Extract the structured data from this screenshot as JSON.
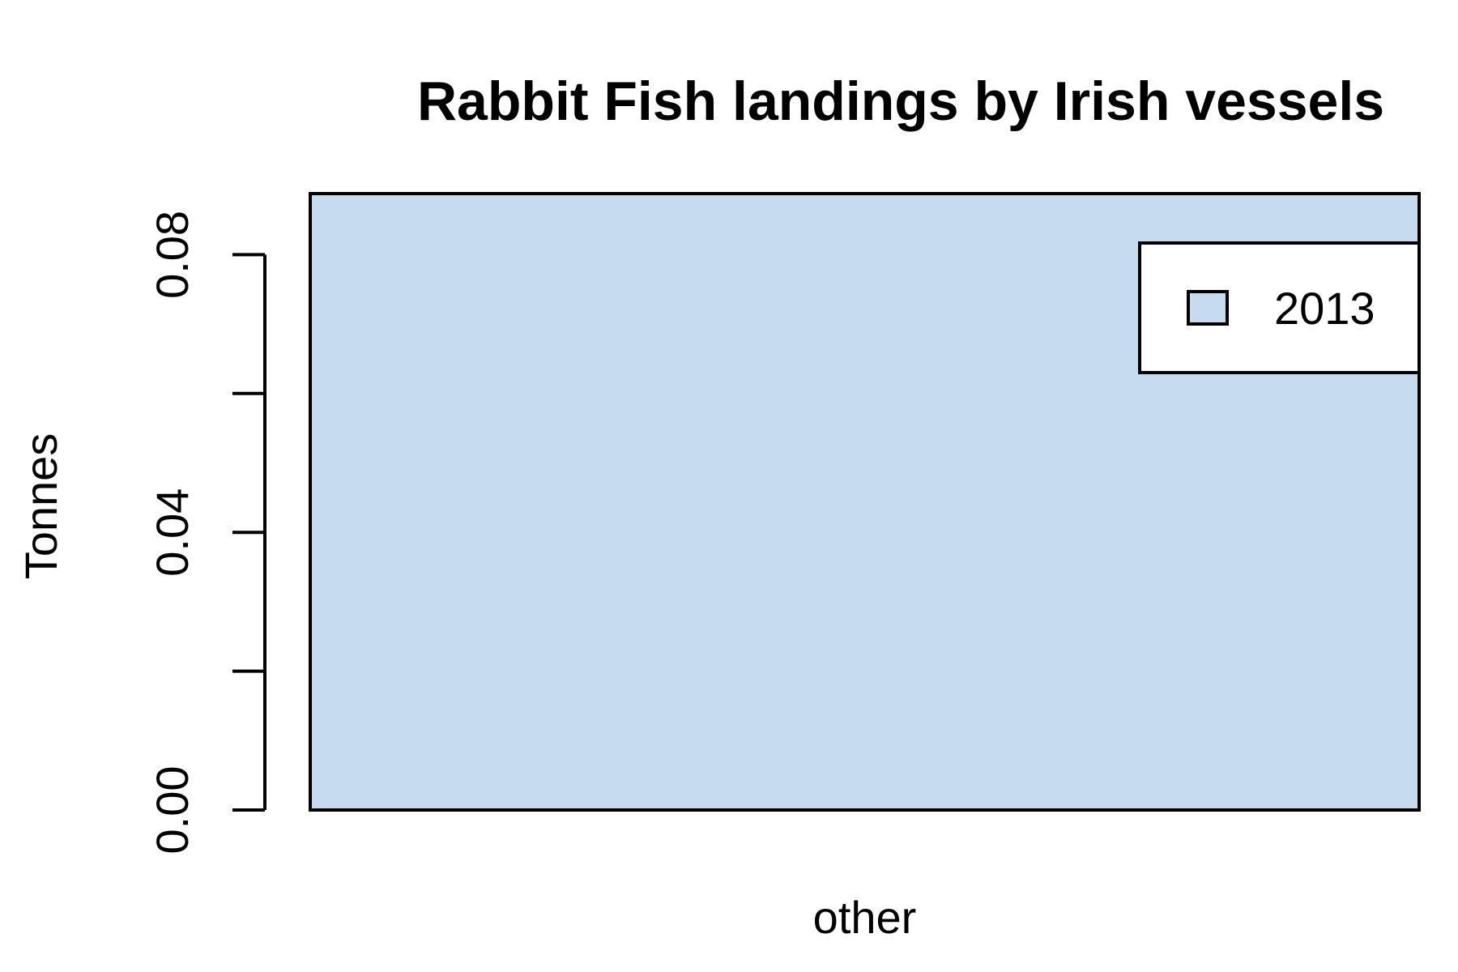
{
  "chart_data": {
    "type": "bar",
    "title": "Rabbit Fish landings by Irish vessels",
    "xlabel": "",
    "ylabel": "Tonnes",
    "categories": [
      "other"
    ],
    "series": [
      {
        "name": "2013",
        "values": [
          0.0888
        ],
        "color": "#c6dbef"
      }
    ],
    "ylim": [
      0,
      0.0888
    ],
    "y_ticks": [
      0,
      0.02,
      0.04,
      0.06,
      0.08
    ],
    "y_tick_labels": [
      "0.00",
      "",
      "0.04",
      "",
      "0.08"
    ],
    "grid": false,
    "legend_position": "top-right",
    "bar_border_color": "#000000"
  }
}
